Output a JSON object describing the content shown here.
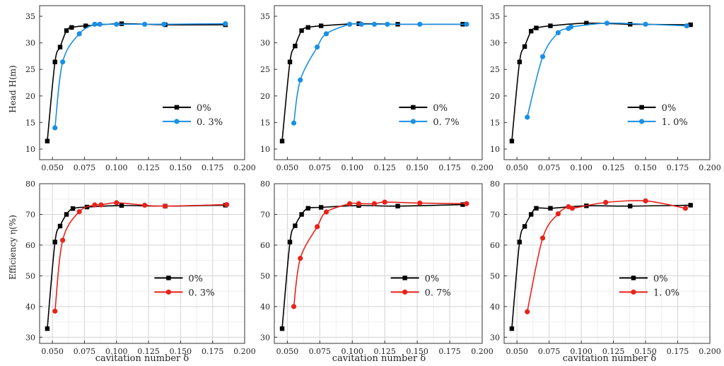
{
  "colors": {
    "base": "#000000",
    "head_series": "#1a8fe3",
    "eff_series": "#e8231b",
    "grid": "#d3d3d3"
  },
  "labels": {
    "head_ylabel": "Head H(m)",
    "eff_ylabel": "Efficiency η(%)",
    "xlabel": "cavitation number δ"
  },
  "chart_data": [
    {
      "type": "line",
      "metric": "head",
      "title": "",
      "xlabel": "",
      "ylabel": "Head H(m)",
      "xlim": [
        0.04,
        0.2
      ],
      "ylim": [
        8,
        37
      ],
      "xticks": [
        "0.050",
        "0.075",
        "0.100",
        "0.125",
        "0.150",
        "0.175",
        "0.200"
      ],
      "yticks": [
        "10",
        "15",
        "20",
        "25",
        "30",
        "35"
      ],
      "grid": false,
      "legend": "center-right",
      "series": [
        {
          "name": "0%",
          "marker": "square",
          "color": "#000000",
          "x": [
            0.046,
            0.052,
            0.056,
            0.061,
            0.065,
            0.076,
            0.104,
            0.138,
            0.185
          ],
          "y": [
            11.5,
            26.4,
            29.2,
            32.3,
            32.9,
            33.2,
            33.6,
            33.4,
            33.4
          ]
        },
        {
          "name": "0. 3%",
          "marker": "circle",
          "color": "#1a8fe3",
          "x": [
            0.052,
            0.058,
            0.071,
            0.083,
            0.087,
            0.1,
            0.122,
            0.137,
            0.185
          ],
          "y": [
            14.0,
            26.4,
            31.7,
            33.5,
            33.5,
            33.5,
            33.5,
            33.5,
            33.6
          ]
        }
      ]
    },
    {
      "type": "line",
      "metric": "head",
      "title": "",
      "xlabel": "",
      "ylabel": "",
      "xlim": [
        0.04,
        0.2
      ],
      "ylim": [
        8,
        37
      ],
      "xticks": [
        "0.050",
        "0.075",
        "0.100",
        "0.125",
        "0.150",
        "0.175",
        "0.200"
      ],
      "yticks": [
        "10",
        "15",
        "20",
        "25",
        "30",
        "35"
      ],
      "grid": false,
      "legend": "center-right",
      "series": [
        {
          "name": "0%",
          "marker": "square",
          "color": "#000000",
          "x": [
            0.046,
            0.052,
            0.056,
            0.061,
            0.066,
            0.076,
            0.105,
            0.135,
            0.185
          ],
          "y": [
            11.5,
            26.4,
            29.4,
            32.3,
            32.9,
            33.2,
            33.6,
            33.5,
            33.5
          ]
        },
        {
          "name": "0. 7%",
          "marker": "circle",
          "color": "#1a8fe3",
          "x": [
            0.055,
            0.06,
            0.073,
            0.08,
            0.098,
            0.107,
            0.117,
            0.127,
            0.152,
            0.188
          ],
          "y": [
            14.9,
            23.0,
            29.2,
            31.7,
            33.5,
            33.5,
            33.5,
            33.5,
            33.5,
            33.5
          ]
        }
      ]
    },
    {
      "type": "line",
      "metric": "head",
      "title": "",
      "xlabel": "",
      "ylabel": "",
      "xlim": [
        0.04,
        0.2
      ],
      "ylim": [
        8,
        37
      ],
      "xticks": [
        "0.050",
        "0.075",
        "0.100",
        "0.125",
        "0.150",
        "0.175",
        "0.200"
      ],
      "yticks": [
        "10",
        "15",
        "20",
        "25",
        "30",
        "35"
      ],
      "grid": false,
      "legend": "center-right",
      "series": [
        {
          "name": "0%",
          "marker": "square",
          "color": "#000000",
          "x": [
            0.046,
            0.052,
            0.056,
            0.061,
            0.065,
            0.076,
            0.104,
            0.138,
            0.185
          ],
          "y": [
            11.5,
            26.4,
            29.3,
            32.2,
            32.8,
            33.2,
            33.7,
            33.5,
            33.4
          ]
        },
        {
          "name": "1. 0%",
          "marker": "circle",
          "color": "#1a8fe3",
          "x": [
            0.058,
            0.07,
            0.082,
            0.09,
            0.092,
            0.12,
            0.15,
            0.182
          ],
          "y": [
            16.0,
            27.4,
            31.9,
            32.7,
            33.0,
            33.7,
            33.5,
            33.2
          ]
        }
      ]
    },
    {
      "type": "line",
      "metric": "efficiency",
      "title": "",
      "xlabel": "cavitation number δ",
      "ylabel": "Efficiency η(%)",
      "xlim": [
        0.04,
        0.2
      ],
      "ylim": [
        28,
        80
      ],
      "xticks": [
        "0.050",
        "0.075",
        "0.100",
        "0.125",
        "0.150",
        "0.175",
        "0.200"
      ],
      "yticks": [
        "30",
        "40",
        "50",
        "60",
        "70",
        "80"
      ],
      "grid": true,
      "legend": "bottom-right",
      "series": [
        {
          "name": "0%",
          "marker": "square",
          "color": "#000000",
          "x": [
            0.046,
            0.052,
            0.056,
            0.061,
            0.066,
            0.077,
            0.104,
            0.138,
            0.185
          ],
          "y": [
            32.8,
            61.0,
            66.2,
            70.0,
            71.9,
            72.4,
            72.9,
            72.7,
            73.0
          ]
        },
        {
          "name": "0. 3%",
          "marker": "circle",
          "color": "#e8231b",
          "x": [
            0.052,
            0.058,
            0.071,
            0.083,
            0.088,
            0.1,
            0.122,
            0.138,
            0.186
          ],
          "y": [
            38.5,
            61.6,
            70.9,
            73.1,
            73.1,
            73.8,
            73.0,
            72.7,
            73.2
          ]
        }
      ]
    },
    {
      "type": "line",
      "metric": "efficiency",
      "title": "",
      "xlabel": "cavitation number δ",
      "ylabel": "",
      "xlim": [
        0.04,
        0.2
      ],
      "ylim": [
        28,
        80
      ],
      "xticks": [
        "0.050",
        "0.075",
        "0.100",
        "0.125",
        "0.150",
        "0.175",
        "0.200"
      ],
      "yticks": [
        "30",
        "40",
        "50",
        "60",
        "70",
        "80"
      ],
      "grid": true,
      "legend": "bottom-right",
      "series": [
        {
          "name": "0%",
          "marker": "square",
          "color": "#000000",
          "x": [
            0.046,
            0.052,
            0.056,
            0.061,
            0.066,
            0.076,
            0.105,
            0.135,
            0.185
          ],
          "y": [
            32.8,
            61.0,
            66.3,
            70.0,
            72.0,
            72.3,
            72.9,
            72.7,
            73.2
          ]
        },
        {
          "name": "0. 7%",
          "marker": "circle",
          "color": "#e8231b",
          "x": [
            0.055,
            0.06,
            0.073,
            0.08,
            0.098,
            0.105,
            0.117,
            0.125,
            0.152,
            0.188
          ],
          "y": [
            40.0,
            55.7,
            66.0,
            70.8,
            73.5,
            73.5,
            73.5,
            74.0,
            73.7,
            73.5
          ]
        }
      ]
    },
    {
      "type": "line",
      "metric": "efficiency",
      "title": "",
      "xlabel": "cavitation number δ",
      "ylabel": "",
      "xlim": [
        0.04,
        0.2
      ],
      "ylim": [
        28,
        80
      ],
      "xticks": [
        "0.050",
        "0.075",
        "0.100",
        "0.125",
        "0.150",
        "0.175",
        "0.200"
      ],
      "yticks": [
        "30",
        "40",
        "50",
        "60",
        "70",
        "80"
      ],
      "grid": true,
      "legend": "bottom-right",
      "series": [
        {
          "name": "0%",
          "marker": "square",
          "color": "#000000",
          "x": [
            0.046,
            0.052,
            0.056,
            0.061,
            0.065,
            0.076,
            0.104,
            0.138,
            0.185
          ],
          "y": [
            32.8,
            61.0,
            66.1,
            70.0,
            72.0,
            72.0,
            72.8,
            72.7,
            73.0
          ]
        },
        {
          "name": "1. 0%",
          "marker": "circle",
          "color": "#e8231b",
          "x": [
            0.058,
            0.07,
            0.082,
            0.09,
            0.093,
            0.119,
            0.15,
            0.181
          ],
          "y": [
            38.3,
            62.3,
            70.2,
            72.5,
            72.0,
            73.9,
            74.4,
            72.0
          ]
        }
      ]
    }
  ]
}
